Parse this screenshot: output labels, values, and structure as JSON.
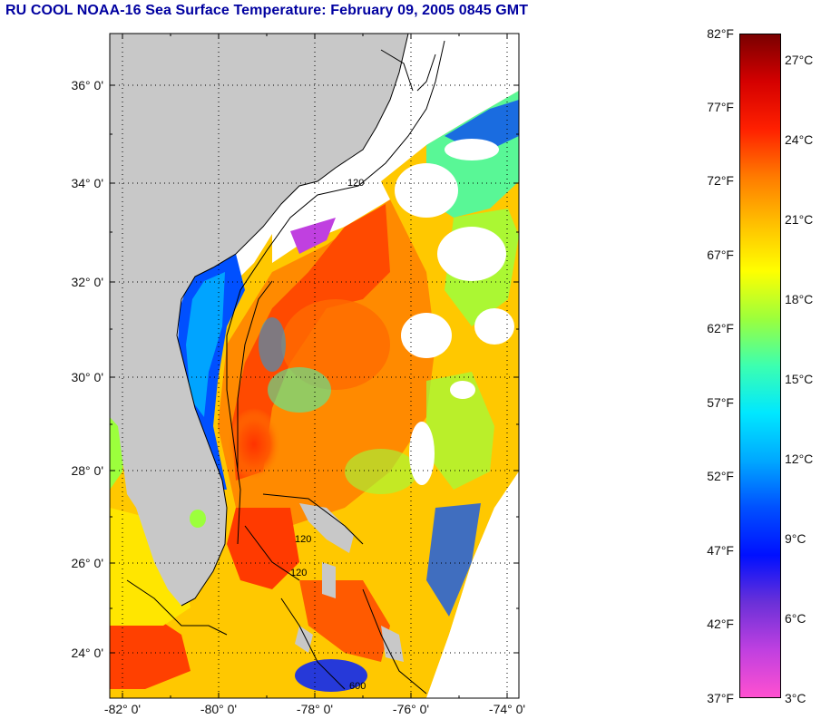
{
  "title": "RU COOL  NOAA-16  Sea Surface Temperature:  February 09, 2005 0845 GMT",
  "lat_labels": [
    "36° 0'",
    "34° 0'",
    "32° 0'",
    "30° 0'",
    "28° 0'",
    "26° 0'",
    "24° 0'"
  ],
  "lon_labels": [
    "-82° 0'",
    "-80° 0'",
    "-78° 0'",
    "-76° 0'",
    "-74° 0'"
  ],
  "isobath_labels": [
    "120",
    "120",
    "600",
    "120"
  ],
  "colorbar": {
    "fahrenheit": [
      "82°F",
      "77°F",
      "72°F",
      "67°F",
      "62°F",
      "57°F",
      "52°F",
      "47°F",
      "42°F",
      "37°F"
    ],
    "celsius": [
      "27°C",
      "24°C",
      "21°C",
      "18°C",
      "15°C",
      "12°C",
      "9°C",
      "6°C",
      "3°C"
    ],
    "colors": [
      "#7a0000",
      "#d40000",
      "#ff2000",
      "#ff7a00",
      "#ffc000",
      "#ffff00",
      "#9cff3c",
      "#3cffb0",
      "#00e8ff",
      "#00a8ff",
      "#0050ff",
      "#0010ff",
      "#6a30d8",
      "#c040e0",
      "#ff50d0"
    ]
  },
  "colors": {
    "land": "#c8c8c8",
    "cloud": "#ffffff",
    "frame": "#000000",
    "title": "#0000a0"
  }
}
